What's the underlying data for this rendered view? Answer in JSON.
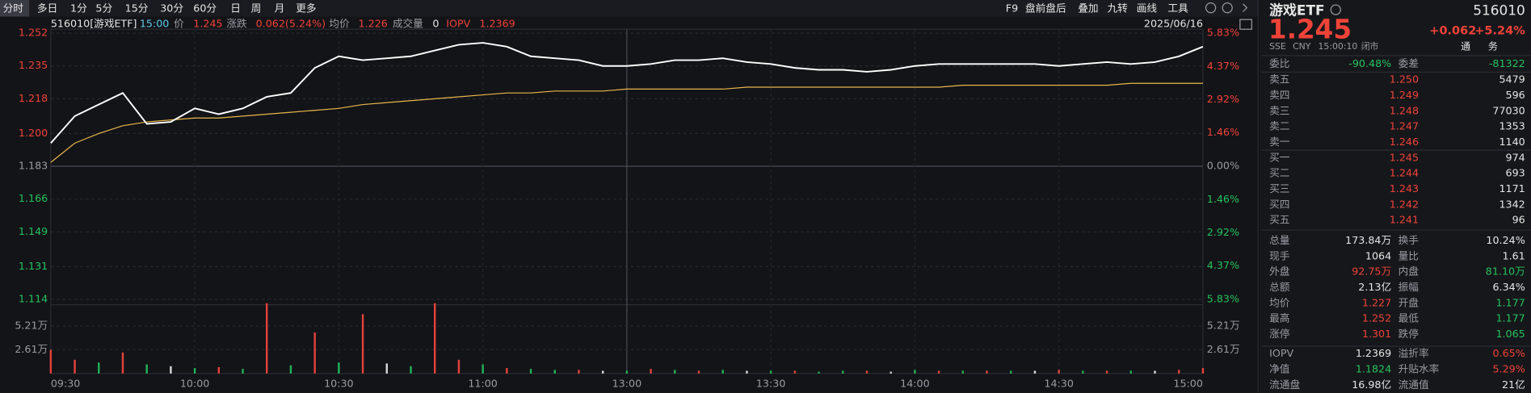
{
  "toolbar": {
    "tabs": [
      "分时",
      "多日",
      "1分",
      "5分",
      "15分",
      "30分",
      "60分",
      "日",
      "周",
      "月",
      "更多"
    ],
    "tools": [
      "F9",
      "盘前盘后",
      "叠加",
      "九转",
      "画线",
      "工具"
    ]
  },
  "info": {
    "symbol": "516010[游戏ETF]",
    "time": "15:00",
    "price_value": "1.245",
    "change_label": "涨跌",
    "change": "0.062(5.24%)",
    "avg_value": "1.226",
    "volume_label": "成交量",
    "volume": "0",
    "iopv_label": "IOPV",
    "iopv": "1.2369",
    "date": "2025/06/16"
  },
  "chart_data": {
    "type": "line",
    "x": [
      "09:30",
      "09:35",
      "09:40",
      "09:45",
      "09:50",
      "09:55",
      "10:00",
      "10:05",
      "10:10",
      "10:15",
      "10:20",
      "10:25",
      "10:30",
      "10:35",
      "10:40",
      "10:45",
      "10:50",
      "10:55",
      "11:00",
      "11:05",
      "11:10",
      "11:15",
      "11:20",
      "11:25",
      "11:30",
      "13:05",
      "13:10",
      "13:15",
      "13:20",
      "13:25",
      "13:30",
      "13:35",
      "13:40",
      "13:45",
      "13:50",
      "13:55",
      "14:00",
      "14:05",
      "14:10",
      "14:15",
      "14:20",
      "14:25",
      "14:30",
      "14:35",
      "14:40",
      "14:45",
      "14:50",
      "14:55",
      "15:00"
    ],
    "series": [
      {
        "name": "价",
        "color": "#ffffff",
        "values": [
          1.195,
          1.209,
          1.215,
          1.221,
          1.205,
          1.206,
          1.213,
          1.21,
          1.213,
          1.219,
          1.221,
          1.234,
          1.24,
          1.238,
          1.239,
          1.24,
          1.243,
          1.246,
          1.247,
          1.245,
          1.24,
          1.239,
          1.238,
          1.235,
          1.235,
          1.236,
          1.238,
          1.238,
          1.239,
          1.237,
          1.236,
          1.234,
          1.233,
          1.233,
          1.232,
          1.233,
          1.235,
          1.236,
          1.236,
          1.236,
          1.236,
          1.236,
          1.235,
          1.236,
          1.237,
          1.236,
          1.237,
          1.24,
          1.245
        ]
      },
      {
        "name": "均价",
        "color": "#e8b64a",
        "values": [
          1.185,
          1.195,
          1.2,
          1.204,
          1.206,
          1.207,
          1.208,
          1.208,
          1.209,
          1.21,
          1.211,
          1.212,
          1.213,
          1.215,
          1.216,
          1.217,
          1.218,
          1.219,
          1.22,
          1.221,
          1.221,
          1.222,
          1.222,
          1.222,
          1.223,
          1.223,
          1.223,
          1.223,
          1.223,
          1.224,
          1.224,
          1.224,
          1.224,
          1.224,
          1.224,
          1.224,
          1.224,
          1.224,
          1.225,
          1.225,
          1.225,
          1.225,
          1.225,
          1.225,
          1.225,
          1.226,
          1.226,
          1.226,
          1.226
        ]
      }
    ],
    "ylim": [
      1.114,
      1.252
    ],
    "yticks": [
      1.252,
      1.235,
      1.218,
      {
        "value": 1.2,
        "label": "1.200"
      },
      1.183,
      1.166,
      1.149,
      1.131,
      1.114
    ],
    "y2lim": [
      -5.83,
      5.83
    ],
    "y2ticks": [
      {
        "value": 5.83,
        "label": "5.83%"
      },
      {
        "value": 4.37,
        "label": "4.37%"
      },
      {
        "value": 2.92,
        "label": "2.92%"
      },
      {
        "value": 1.46,
        "label": "1.46%"
      },
      {
        "value": 0,
        "label": "0.00%"
      },
      {
        "value": -1.46,
        "label": "1.46%"
      },
      {
        "value": -2.92,
        "label": "2.92%"
      },
      {
        "value": -4.37,
        "label": "4.37%"
      },
      {
        "value": -5.83,
        "label": "5.83%"
      }
    ],
    "xticks": [
      "09:30",
      "10:00",
      "10:30",
      "11:00",
      "13:00",
      "13:30",
      "14:00",
      "14:30",
      "15:00"
    ],
    "grid": true,
    "volume": {
      "type": "bar",
      "values": [
        2.6,
        1.5,
        1.2,
        2.3,
        1.0,
        0.8,
        0.6,
        0.7,
        0.5,
        7.7,
        0.9,
        4.5,
        1.2,
        6.5,
        1.1,
        0.8,
        7.7,
        1.5,
        1.0,
        0.6,
        0.5,
        0.4,
        0.4,
        0.3,
        0.3,
        0.5,
        0.4,
        0.3,
        0.4,
        0.3,
        0.3,
        0.3,
        0.2,
        0.3,
        0.3,
        0.2,
        0.4,
        0.3,
        0.3,
        0.3,
        0.3,
        0.3,
        0.4,
        0.3,
        0.3,
        0.3,
        0.3,
        0.4,
        0.6
      ],
      "colors": [
        "#e5413b",
        "#e5413b",
        "#21b356",
        "#e5413b",
        "#21b356",
        "#d8d8d8",
        "#21b356",
        "#e5413b",
        "#21b356",
        "#e5413b",
        "#21b356",
        "#e5413b",
        "#21b356",
        "#e5413b",
        "#d8d8d8",
        "#21b356",
        "#e5413b",
        "#e5413b",
        "#21b356",
        "#e5413b",
        "#21b356",
        "#21b356",
        "#e5413b",
        "#d8d8d8",
        "#21b356",
        "#e5413b",
        "#21b356",
        "#e5413b",
        "#21b356",
        "#d8d8d8",
        "#21b356",
        "#e5413b",
        "#21b356",
        "#21b356",
        "#e5413b",
        "#d8d8d8",
        "#21b356",
        "#e5413b",
        "#21b356",
        "#e5413b",
        "#21b356",
        "#d8d8d8",
        "#e5413b",
        "#21b356",
        "#e5413b",
        "#21b356",
        "#d8d8d8",
        "#e5413b",
        "#e5413b"
      ],
      "ylim": [
        0,
        7.8
      ],
      "yticks": [
        {
          "value": 5.21,
          "label": "5.21万"
        },
        {
          "value": 2.61,
          "label": "2.61万"
        }
      ]
    }
  },
  "quote": {
    "name": "游戏ETF",
    "code": "516010",
    "price": "1.245",
    "change": "+0.062",
    "change_pct": "+5.24%",
    "exchange": "SSE",
    "currency": "CNY",
    "time": "15:00:10",
    "status": "闭市",
    "badges": [
      "通",
      "务"
    ]
  },
  "ratio": [
    "委比",
    "-90.48%",
    "委差",
    "-81322"
  ],
  "asks": [
    [
      "卖五",
      "1.250",
      "5479"
    ],
    [
      "卖四",
      "1.249",
      "596"
    ],
    [
      "卖三",
      "1.248",
      "77030"
    ],
    [
      "卖二",
      "1.247",
      "1353"
    ],
    [
      "卖一",
      "1.246",
      "1140"
    ]
  ],
  "bids": [
    [
      "买一",
      "1.245",
      "974"
    ],
    [
      "买二",
      "1.244",
      "693"
    ],
    [
      "买三",
      "1.243",
      "1171"
    ],
    [
      "买四",
      "1.242",
      "1342"
    ],
    [
      "买五",
      "1.241",
      "96"
    ]
  ],
  "stats": [
    [
      "总量",
      "173.84万",
      "换手",
      "10.24%"
    ],
    [
      "现手",
      "1064",
      "量比",
      "1.61"
    ],
    [
      "外盘",
      "92.75万",
      "内盘",
      "81.10万"
    ],
    [
      "总额",
      "2.13亿",
      "振幅",
      "6.34%"
    ],
    [
      "均价",
      "1.227",
      "开盘",
      "1.177"
    ],
    [
      "最高",
      "1.252",
      "最低",
      "1.177"
    ],
    [
      "涨停",
      "1.301",
      "跌停",
      "1.065"
    ]
  ],
  "extra": [
    [
      "IOPV",
      "1.2369",
      "溢折率",
      "0.65%"
    ],
    [
      "净值",
      "1.1824",
      "升贴水率",
      "5.29%"
    ],
    [
      "流通盘",
      "16.98亿",
      "流通值",
      "21亿"
    ]
  ]
}
